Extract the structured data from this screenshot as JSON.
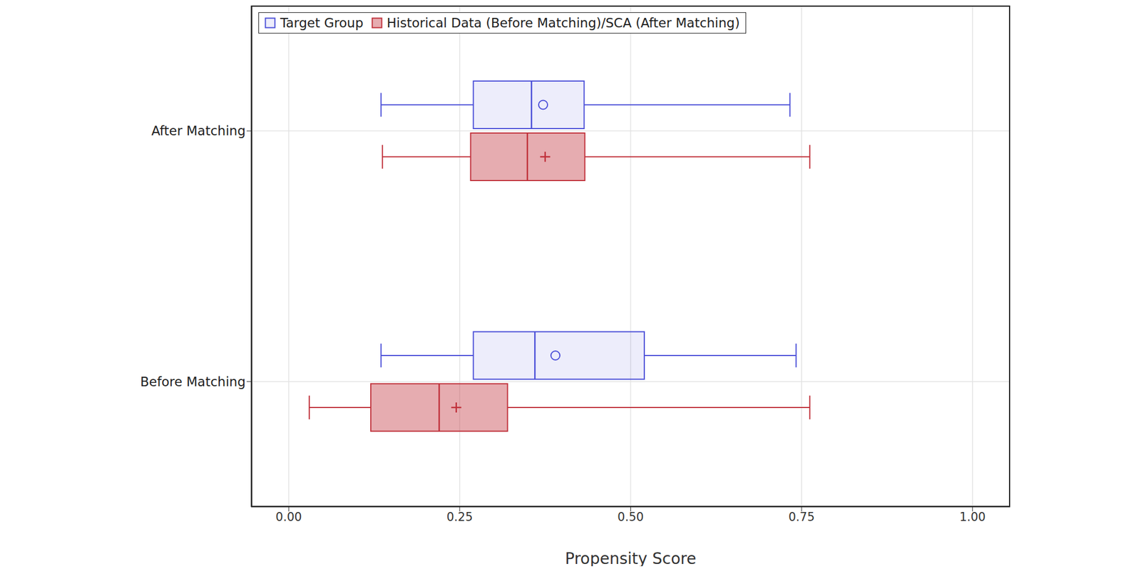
{
  "chart_data": {
    "type": "boxplot",
    "orientation": "horizontal",
    "xlabel": "Propensity Score",
    "categories": [
      "After Matching",
      "Before Matching"
    ],
    "xlim": [
      -0.055,
      1.055
    ],
    "xticks": [
      {
        "value": 0,
        "label": "0.00"
      },
      {
        "value": 0.25,
        "label": "0.25"
      },
      {
        "value": 0.5,
        "label": "0.50"
      },
      {
        "value": 0.75,
        "label": "0.75"
      },
      {
        "value": 1,
        "label": "1.00"
      }
    ],
    "grid": true,
    "legend": "upper left",
    "series": [
      {
        "name": "Target Group",
        "color": "#4b4fd8",
        "marker": "circle",
        "stats": [
          {
            "min": 0.135,
            "q1": 0.27,
            "median": 0.355,
            "q3": 0.432,
            "max": 0.733,
            "mean": 0.372
          },
          {
            "min": 0.135,
            "q1": 0.27,
            "median": 0.36,
            "q3": 0.52,
            "max": 0.742,
            "mean": 0.39
          }
        ]
      },
      {
        "name": "Historical Data (Before Matching)/SCA (After Matching)",
        "color": "#c0303a",
        "marker": "plus",
        "stats": [
          {
            "min": 0.137,
            "q1": 0.266,
            "median": 0.349,
            "q3": 0.433,
            "max": 0.762,
            "mean": 0.375
          },
          {
            "min": 0.03,
            "q1": 0.12,
            "median": 0.22,
            "q3": 0.32,
            "max": 0.762,
            "mean": 0.245
          }
        ]
      }
    ]
  }
}
